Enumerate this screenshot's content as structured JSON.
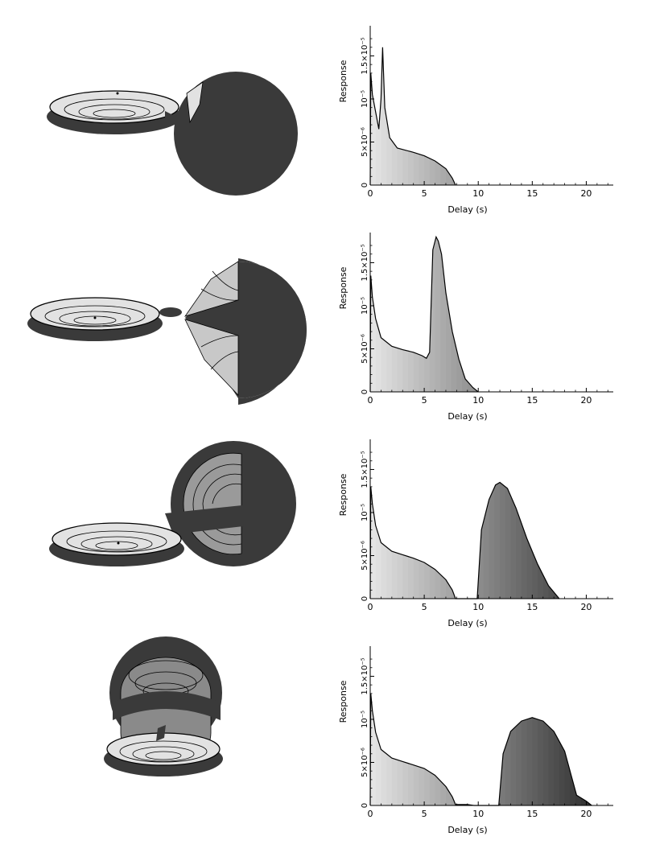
{
  "colors": {
    "dark_fill": "#3a3a3a",
    "light_fill": "#e2e2e2",
    "mid_fill": "#c8c8c8",
    "line": "#000000"
  },
  "axis_labels": {
    "x": "Delay (s)",
    "y": "Response"
  },
  "x_ticks": [
    "0",
    "5",
    "10",
    "15",
    "20"
  ],
  "y_ticks": [
    "0",
    "5×10⁻⁶",
    "10⁻⁵",
    "1.5×10⁻⁵"
  ],
  "chart_data": [
    {
      "type": "area",
      "xlabel": "Delay (s)",
      "ylabel": "Response",
      "xlim": [
        0,
        22.5
      ],
      "ylim": [
        0,
        1.85e-05
      ],
      "x_ticks": [
        0,
        5,
        10,
        15,
        20
      ],
      "y_ticks": [
        0,
        5e-06,
        1e-05,
        1.5e-05
      ],
      "points": [
        [
          0,
          0
        ],
        [
          0.05,
          1.3e-05
        ],
        [
          0.2,
          1.05e-05
        ],
        [
          0.5,
          8.5e-06
        ],
        [
          0.8,
          6.5e-06
        ],
        [
          1.0,
          1e-05
        ],
        [
          1.15,
          1.6e-05
        ],
        [
          1.35,
          9e-06
        ],
        [
          1.8,
          5.5e-06
        ],
        [
          2.5,
          4.3e-06
        ],
        [
          4,
          3.8e-06
        ],
        [
          5,
          3.4e-06
        ],
        [
          6,
          2.8e-06
        ],
        [
          7,
          1.9e-06
        ],
        [
          7.6,
          8e-07
        ],
        [
          7.9,
          0
        ]
      ]
    },
    {
      "type": "area",
      "xlabel": "Delay (s)",
      "ylabel": "Response",
      "xlim": [
        0,
        22.5
      ],
      "ylim": [
        0,
        1.85e-05
      ],
      "x_ticks": [
        0,
        5,
        10,
        15,
        20
      ],
      "y_ticks": [
        0,
        5e-06,
        1e-05,
        1.5e-05
      ],
      "points": [
        [
          0,
          0
        ],
        [
          0.05,
          1.35e-05
        ],
        [
          0.2,
          1.1e-05
        ],
        [
          0.5,
          8.5e-06
        ],
        [
          1,
          6.3e-06
        ],
        [
          2,
          5.3e-06
        ],
        [
          3,
          4.9e-06
        ],
        [
          4,
          4.6e-06
        ],
        [
          4.8,
          4.2e-06
        ],
        [
          5.2,
          3.9e-06
        ],
        [
          5.5,
          4.6e-06
        ],
        [
          5.8,
          1.65e-05
        ],
        [
          6.1,
          1.8e-05
        ],
        [
          6.3,
          1.75e-05
        ],
        [
          6.6,
          1.6e-05
        ],
        [
          7,
          1.15e-05
        ],
        [
          7.6,
          7e-06
        ],
        [
          8.2,
          3.8e-06
        ],
        [
          8.8,
          1.5e-06
        ],
        [
          9.5,
          5e-07
        ],
        [
          10,
          0
        ]
      ]
    },
    {
      "type": "area",
      "xlabel": "Delay (s)",
      "ylabel": "Response",
      "xlim": [
        0,
        22.5
      ],
      "ylim": [
        0,
        1.85e-05
      ],
      "x_ticks": [
        0,
        5,
        10,
        15,
        20
      ],
      "y_ticks": [
        0,
        5e-06,
        1e-05,
        1.5e-05
      ],
      "points": [
        [
          0,
          0
        ],
        [
          0.05,
          1.3e-05
        ],
        [
          0.2,
          1.1e-05
        ],
        [
          0.5,
          8.5e-06
        ],
        [
          1,
          6.5e-06
        ],
        [
          2,
          5.5e-06
        ],
        [
          3,
          5.1e-06
        ],
        [
          4,
          4.7e-06
        ],
        [
          5,
          4.2e-06
        ],
        [
          6,
          3.4e-06
        ],
        [
          7,
          2.2e-06
        ],
        [
          7.6,
          1e-06
        ],
        [
          7.9,
          0
        ],
        [
          9.9,
          0
        ],
        [
          10.3,
          8e-06
        ],
        [
          11,
          1.15e-05
        ],
        [
          11.6,
          1.32e-05
        ],
        [
          12,
          1.35e-05
        ],
        [
          12.7,
          1.28e-05
        ],
        [
          13.5,
          1.05e-05
        ],
        [
          14.5,
          7e-06
        ],
        [
          15.5,
          4e-06
        ],
        [
          16.5,
          1.5e-06
        ],
        [
          17.5,
          0
        ]
      ]
    },
    {
      "type": "area",
      "xlabel": "Delay (s)",
      "ylabel": "Response",
      "xlim": [
        0,
        22.5
      ],
      "ylim": [
        0,
        1.85e-05
      ],
      "x_ticks": [
        0,
        5,
        10,
        15,
        20
      ],
      "y_ticks": [
        0,
        5e-06,
        1e-05,
        1.5e-05
      ],
      "points": [
        [
          0,
          0
        ],
        [
          0.05,
          1.3e-05
        ],
        [
          0.2,
          1.1e-05
        ],
        [
          0.5,
          8.5e-06
        ],
        [
          1,
          6.5e-06
        ],
        [
          2,
          5.5e-06
        ],
        [
          3,
          5.1e-06
        ],
        [
          4,
          4.7e-06
        ],
        [
          5,
          4.3e-06
        ],
        [
          6,
          3.5e-06
        ],
        [
          7,
          2.2e-06
        ],
        [
          7.6,
          1e-06
        ],
        [
          7.9,
          1e-07
        ],
        [
          9,
          1e-07
        ],
        [
          9.6,
          0
        ],
        [
          11.9,
          0
        ],
        [
          12.3,
          6e-06
        ],
        [
          13,
          8.6e-06
        ],
        [
          14,
          9.8e-06
        ],
        [
          15,
          1.02e-05
        ],
        [
          16,
          9.8e-06
        ],
        [
          17,
          8.6e-06
        ],
        [
          18,
          6.3e-06
        ],
        [
          18.6,
          3.5e-06
        ],
        [
          19.1,
          1.2e-06
        ],
        [
          20,
          5e-07
        ],
        [
          20.5,
          0
        ]
      ]
    }
  ]
}
